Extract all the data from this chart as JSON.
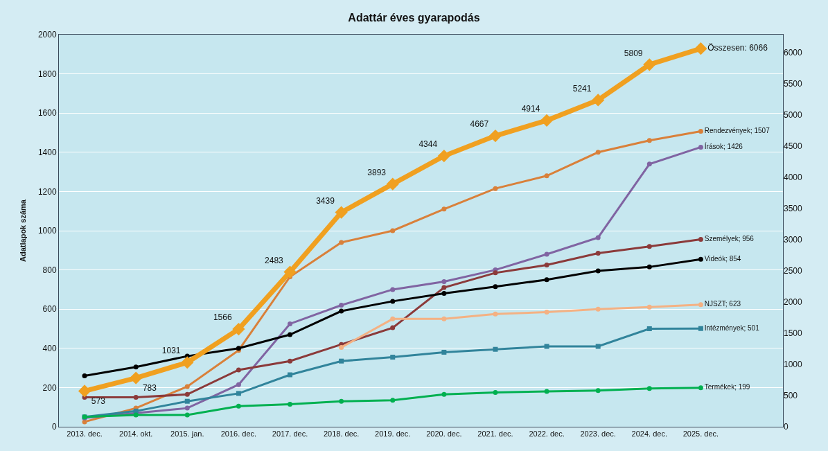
{
  "chart_data": {
    "type": "line",
    "title": "Adattár éves gyarapodás",
    "ylabel": "Adatlapok száma",
    "categories": [
      "2013. dec.",
      "2014. okt.",
      "2015. jan.",
      "2016. dec.",
      "2017. dec.",
      "2018. dec.",
      "2019. dec.",
      "2020. dec.",
      "2021. dec.",
      "2022. dec.",
      "2023. dec.",
      "2024. dec.",
      "2025. dec."
    ],
    "ylim": [
      0,
      2000
    ],
    "yticks": [
      0,
      200,
      400,
      600,
      800,
      1000,
      1200,
      1400,
      1600,
      1800,
      2000
    ],
    "y2lim": [
      0,
      6290
    ],
    "y2ticks": [
      0,
      500,
      1000,
      1500,
      2000,
      2500,
      3000,
      3500,
      4000,
      4500,
      5000,
      5500,
      6000
    ],
    "grid": "y",
    "legend": false,
    "marker": "circle",
    "line_style": "solid",
    "series": [
      {
        "color": "#f0a020",
        "axis": "y2",
        "marker": "diamond",
        "values": [
          573,
          783,
          1031,
          1566,
          2483,
          3439,
          3893,
          4344,
          4667,
          4914,
          5241,
          5809,
          6066
        ],
        "value_labels": [
          "573",
          "783",
          "1031",
          "1566",
          "2483",
          "3439",
          "3893",
          "4344",
          "4667",
          "4914",
          "5241",
          "5809",
          "Összesen: 6066"
        ]
      },
      {
        "color": "#d9803a",
        "values": [
          25,
          95,
          205,
          390,
          765,
          940,
          1000,
          1110,
          1215,
          1280,
          1400,
          1460,
          1507
        ],
        "value_labels": [
          null,
          null,
          null,
          null,
          null,
          null,
          null,
          null,
          null,
          null,
          null,
          null,
          "Rendezvények; 1507"
        ]
      },
      {
        "color": "#8064a2",
        "values": [
          45,
          70,
          95,
          215,
          525,
          620,
          700,
          740,
          800,
          880,
          965,
          1340,
          1426
        ],
        "value_labels": [
          null,
          null,
          null,
          null,
          null,
          null,
          null,
          null,
          null,
          null,
          null,
          null,
          "Írások; 1426"
        ]
      },
      {
        "color": "#8b3a3a",
        "values": [
          150,
          150,
          165,
          290,
          335,
          420,
          505,
          710,
          785,
          825,
          885,
          920,
          956
        ],
        "value_labels": [
          null,
          null,
          null,
          null,
          null,
          null,
          null,
          null,
          null,
          null,
          null,
          null,
          "Személyek; 956"
        ]
      },
      {
        "color": "#000000",
        "values": [
          260,
          305,
          360,
          400,
          470,
          590,
          640,
          680,
          715,
          750,
          795,
          815,
          854
        ],
        "value_labels": [
          null,
          null,
          null,
          null,
          null,
          null,
          null,
          null,
          null,
          null,
          null,
          null,
          "Videók; 854"
        ]
      },
      {
        "color": "#f4b183",
        "values": [
          null,
          null,
          null,
          null,
          null,
          405,
          550,
          550,
          575,
          585,
          600,
          610,
          623
        ],
        "value_labels": [
          null,
          null,
          null,
          null,
          null,
          null,
          null,
          null,
          null,
          null,
          null,
          null,
          "NJSZT; 623"
        ]
      },
      {
        "color": "#31849b",
        "marker": "square",
        "values": [
          50,
          80,
          130,
          170,
          265,
          335,
          355,
          380,
          395,
          410,
          410,
          500,
          501
        ],
        "value_labels": [
          null,
          null,
          null,
          null,
          null,
          null,
          null,
          null,
          null,
          null,
          null,
          null,
          "Intézmények; 501"
        ]
      },
      {
        "color": "#00b050",
        "values": [
          50,
          60,
          60,
          105,
          115,
          130,
          135,
          165,
          175,
          180,
          185,
          195,
          199
        ],
        "value_labels": [
          null,
          null,
          null,
          null,
          null,
          null,
          null,
          null,
          null,
          null,
          null,
          null,
          "Termékek; 199"
        ]
      }
    ]
  }
}
